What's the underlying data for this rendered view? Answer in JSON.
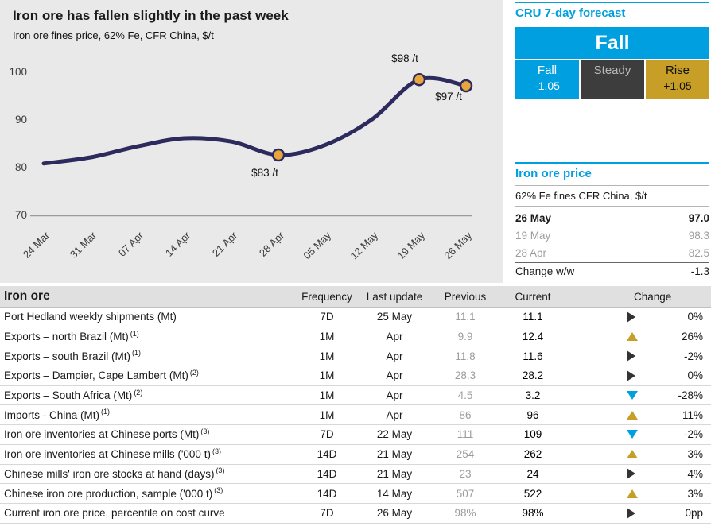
{
  "chart_data": {
    "type": "line",
    "title": "Iron ore has fallen slightly in the past week",
    "subtitle": "Iron ore fines price, 62% Fe, CFR China, $/t",
    "x": [
      "24 Mar",
      "31 Mar",
      "07 Apr",
      "14 Apr",
      "21 Apr",
      "28 Apr",
      "05 May",
      "12 May",
      "19 May",
      "26 May"
    ],
    "values": [
      80.7,
      82.0,
      84.3,
      86.0,
      85.3,
      82.5,
      84.6,
      90.0,
      98.3,
      97.0
    ],
    "ylim": [
      70,
      100
    ],
    "yticks": [
      70,
      80,
      90,
      100
    ],
    "grid": false,
    "legend": "none",
    "line_color": "#2d2a5e",
    "marker_color": "#e9a63c",
    "annotations": [
      {
        "x": "28 Apr",
        "label": "$83 /t",
        "position": "below"
      },
      {
        "x": "19 May",
        "label": "$98 /t",
        "position": "above"
      },
      {
        "x": "26 May",
        "label": "$97 /t",
        "position": "below-left"
      }
    ]
  },
  "forecast": {
    "heading": "CRU 7-day forecast",
    "main_value": "Fall",
    "cells": [
      {
        "label": "Fall",
        "value": "-1.05",
        "type": "fall"
      },
      {
        "label": "Steady",
        "value": "",
        "type": "steady"
      },
      {
        "label": "Rise",
        "value": "+1.05",
        "type": "rise"
      }
    ]
  },
  "price_panel": {
    "heading": "Iron ore price",
    "subheading": "62% Fe fines CFR China, $/t",
    "rows": [
      {
        "label": "26 May",
        "value": "97.0",
        "style": "bold"
      },
      {
        "label": "19 May",
        "value": "98.3",
        "style": "muted"
      },
      {
        "label": "28 Apr",
        "value": "82.5",
        "style": "muted"
      },
      {
        "label": "Change w/w",
        "value": "-1.3",
        "style": "change"
      }
    ]
  },
  "table": {
    "title": "Iron ore",
    "columns": [
      "Frequency",
      "Last update",
      "Previous",
      "Current",
      "Change"
    ],
    "rows": [
      {
        "label": "Port Hedland weekly shipments (Mt)",
        "footnote": "",
        "frequency": "7D",
        "last_update": "25 May",
        "previous": "11.1",
        "current": "11.1",
        "direction": "steady",
        "change": "0%"
      },
      {
        "label": "Exports – north Brazil (Mt)",
        "footnote": "1",
        "frequency": "1M",
        "last_update": "Apr",
        "previous": "9.9",
        "current": "12.4",
        "direction": "up",
        "change": "26%"
      },
      {
        "label": "Exports – south Brazil (Mt)",
        "footnote": "1",
        "frequency": "1M",
        "last_update": "Apr",
        "previous": "11.8",
        "current": "11.6",
        "direction": "steady",
        "change": "-2%"
      },
      {
        "label": "Exports – Dampier, Cape Lambert (Mt)",
        "footnote": "2",
        "frequency": "1M",
        "last_update": "Apr",
        "previous": "28.3",
        "current": "28.2",
        "direction": "steady",
        "change": "0%"
      },
      {
        "label": "Exports – South Africa (Mt)",
        "footnote": "2",
        "frequency": "1M",
        "last_update": "Apr",
        "previous": "4.5",
        "current": "3.2",
        "direction": "down",
        "change": "-28%"
      },
      {
        "label": "Imports - China (Mt)",
        "footnote": "1",
        "frequency": "1M",
        "last_update": "Apr",
        "previous": "86",
        "current": "96",
        "direction": "up",
        "change": "11%"
      },
      {
        "label": "Iron ore inventories at Chinese ports (Mt)",
        "footnote": "3",
        "frequency": "7D",
        "last_update": "22 May",
        "previous": "111",
        "current": "109",
        "direction": "down",
        "change": "-2%"
      },
      {
        "label": "Iron ore inventories at Chinese mills ('000 t)",
        "footnote": "3",
        "frequency": "14D",
        "last_update": "21 May",
        "previous": "254",
        "current": "262",
        "direction": "up",
        "change": "3%"
      },
      {
        "label": "Chinese mills' iron ore stocks at hand (days)",
        "footnote": "3",
        "frequency": "14D",
        "last_update": "21 May",
        "previous": "23",
        "current": "24",
        "direction": "steady",
        "change": "4%"
      },
      {
        "label": "Chinese iron ore production, sample ('000 t)",
        "footnote": "3",
        "frequency": "14D",
        "last_update": "14 May",
        "previous": "507",
        "current": "522",
        "direction": "up",
        "change": "3%"
      },
      {
        "label": "Current iron ore price, percentile on cost curve",
        "footnote": "",
        "frequency": "7D",
        "last_update": "26 May",
        "previous": "98%",
        "current": "98%",
        "direction": "steady",
        "change": "0pp"
      }
    ]
  },
  "icons": {
    "up": "up-triangle-gold",
    "down": "down-triangle-cyan",
    "steady": "right-triangle-dark"
  },
  "colors": {
    "accent_cyan": "#009fdf",
    "accent_gold": "#c79f27",
    "steady_gray": "#3d3d3d",
    "muted_text": "#9c9c9c",
    "chart_bg": "#e9e9e9",
    "line_navy": "#2d2a5e",
    "marker_gold": "#e9a63c"
  }
}
